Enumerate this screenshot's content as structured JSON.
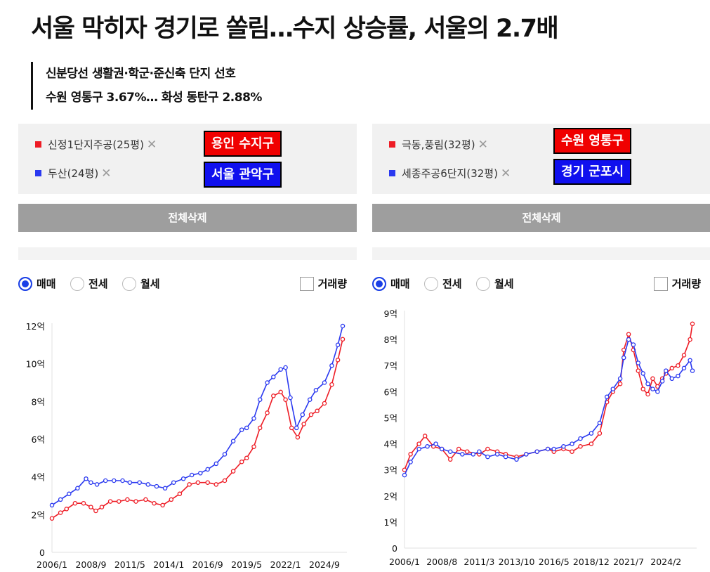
{
  "headline": "서울 막히자 경기로 쏠림…수지 상승률, 서울의 2.7배",
  "subheadings": [
    "신분당선 생활권·학군·준신축 단지 선호",
    "수원 영통구 3.67%… 화성 동탄구 2.88%"
  ],
  "colors": {
    "red": "#ee1c25",
    "blue": "#2a39f0",
    "region_label_red": "#f00000",
    "region_label_blue": "#1010ee",
    "clear_button": "#9e9e9e"
  },
  "icons": {
    "remove": "close-icon",
    "legend_marker": "square-icon",
    "trade_type": "radio-icon",
    "volume": "checkbox-icon"
  },
  "panels": [
    {
      "items": [
        {
          "label": "신정1단지주공(25평)",
          "color": "#ee1c25"
        },
        {
          "label": "두산(24평)",
          "color": "#2a39f0"
        }
      ],
      "region_labels": [
        "용인 수지구",
        "서울 관악구"
      ],
      "remove_mark": "✕",
      "clear_button": "전체삭제",
      "trade_types": [
        "매매",
        "전세",
        "월세"
      ],
      "selected_trade_type": "매매",
      "volume_label": "거래량",
      "volume_checked": false
    },
    {
      "items": [
        {
          "label": "극동,풍림(32평)",
          "color": "#ee1c25"
        },
        {
          "label": "세종주공6단지(32평)",
          "color": "#2a39f0"
        }
      ],
      "region_labels": [
        "수원 영통구",
        "경기 군포시"
      ],
      "remove_mark": "✕",
      "clear_button": "전체삭제",
      "trade_types": [
        "매매",
        "전세",
        "월세"
      ],
      "selected_trade_type": "매매",
      "volume_label": "거래량",
      "volume_checked": false
    }
  ],
  "chart_data": [
    {
      "type": "line",
      "x_tick_labels": [
        "2006/1",
        "2008/9",
        "2011/5",
        "2014/1",
        "2016/9",
        "2019/5",
        "2022/1",
        "2024/9"
      ],
      "x_range": [
        "2006/1",
        "2025/12"
      ],
      "y_tick_labels": [
        "0",
        "2억",
        "4억",
        "6억",
        "8억",
        "10억",
        "12억"
      ],
      "ylim": [
        0,
        12
      ],
      "y_unit": "억",
      "grid": false,
      "series": [
        {
          "name": "신정1단지주공(25평)",
          "color": "#ee1c25",
          "points": [
            [
              "2006/1",
              1.8
            ],
            [
              "2006/8",
              2.1
            ],
            [
              "2007/1",
              2.3
            ],
            [
              "2007/8",
              2.6
            ],
            [
              "2008/3",
              2.6
            ],
            [
              "2008/9",
              2.4
            ],
            [
              "2009/1",
              2.2
            ],
            [
              "2009/6",
              2.4
            ],
            [
              "2010/1",
              2.7
            ],
            [
              "2010/8",
              2.7
            ],
            [
              "2011/3",
              2.8
            ],
            [
              "2011/10",
              2.7
            ],
            [
              "2012/6",
              2.8
            ],
            [
              "2013/1",
              2.6
            ],
            [
              "2013/8",
              2.5
            ],
            [
              "2014/3",
              2.8
            ],
            [
              "2014/10",
              3.1
            ],
            [
              "2015/6",
              3.6
            ],
            [
              "2016/1",
              3.7
            ],
            [
              "2016/9",
              3.7
            ],
            [
              "2017/4",
              3.6
            ],
            [
              "2017/11",
              3.8
            ],
            [
              "2018/6",
              4.3
            ],
            [
              "2019/1",
              4.8
            ],
            [
              "2019/5",
              5.0
            ],
            [
              "2019/11",
              5.6
            ],
            [
              "2020/4",
              6.6
            ],
            [
              "2020/10",
              7.4
            ],
            [
              "2021/3",
              8.3
            ],
            [
              "2021/9",
              8.5
            ],
            [
              "2022/1",
              8.1
            ],
            [
              "2022/6",
              6.6
            ],
            [
              "2022/11",
              6.1
            ],
            [
              "2023/4",
              6.8
            ],
            [
              "2023/10",
              7.3
            ],
            [
              "2024/3",
              7.5
            ],
            [
              "2024/9",
              7.9
            ],
            [
              "2025/3",
              8.9
            ],
            [
              "2025/8",
              10.2
            ],
            [
              "2025/12",
              11.3
            ]
          ]
        },
        {
          "name": "두산(24평)",
          "color": "#2a39f0",
          "points": [
            [
              "2006/1",
              2.5
            ],
            [
              "2006/8",
              2.8
            ],
            [
              "2007/3",
              3.1
            ],
            [
              "2007/10",
              3.4
            ],
            [
              "2008/5",
              3.9
            ],
            [
              "2008/9",
              3.7
            ],
            [
              "2009/2",
              3.6
            ],
            [
              "2009/9",
              3.8
            ],
            [
              "2010/4",
              3.8
            ],
            [
              "2010/11",
              3.8
            ],
            [
              "2011/5",
              3.7
            ],
            [
              "2012/1",
              3.7
            ],
            [
              "2012/8",
              3.6
            ],
            [
              "2013/3",
              3.5
            ],
            [
              "2013/10",
              3.4
            ],
            [
              "2014/5",
              3.7
            ],
            [
              "2015/1",
              3.9
            ],
            [
              "2015/8",
              4.1
            ],
            [
              "2016/3",
              4.2
            ],
            [
              "2016/9",
              4.4
            ],
            [
              "2017/4",
              4.7
            ],
            [
              "2017/11",
              5.2
            ],
            [
              "2018/6",
              5.9
            ],
            [
              "2019/1",
              6.5
            ],
            [
              "2019/5",
              6.6
            ],
            [
              "2019/11",
              7.1
            ],
            [
              "2020/4",
              8.1
            ],
            [
              "2020/10",
              9.0
            ],
            [
              "2021/3",
              9.3
            ],
            [
              "2021/9",
              9.7
            ],
            [
              "2022/1",
              9.8
            ],
            [
              "2022/5",
              8.2
            ],
            [
              "2022/10",
              6.6
            ],
            [
              "2023/3",
              7.3
            ],
            [
              "2023/9",
              8.1
            ],
            [
              "2024/2",
              8.6
            ],
            [
              "2024/9",
              9.0
            ],
            [
              "2025/3",
              9.9
            ],
            [
              "2025/8",
              11.0
            ],
            [
              "2025/12",
              12.0
            ]
          ]
        }
      ]
    },
    {
      "type": "line",
      "x_tick_labels": [
        "2006/1",
        "2008/8",
        "2011/3",
        "2013/10",
        "2016/5",
        "2018/12",
        "2021/7",
        "2024/2"
      ],
      "x_range": [
        "2006/1",
        "2025/12"
      ],
      "y_tick_labels": [
        "0",
        "1억",
        "2억",
        "3억",
        "4억",
        "5억",
        "6억",
        "7억",
        "8억",
        "9억"
      ],
      "ylim": [
        0,
        9
      ],
      "y_unit": "억",
      "grid": false,
      "series": [
        {
          "name": "극동,풍림(32평)",
          "color": "#ee1c25",
          "points": [
            [
              "2006/1",
              3.0
            ],
            [
              "2006/6",
              3.6
            ],
            [
              "2007/1",
              4.0
            ],
            [
              "2007/6",
              4.3
            ],
            [
              "2008/1",
              3.9
            ],
            [
              "2008/8",
              3.8
            ],
            [
              "2009/3",
              3.4
            ],
            [
              "2009/10",
              3.8
            ],
            [
              "2010/5",
              3.7
            ],
            [
              "2011/3",
              3.6
            ],
            [
              "2011/10",
              3.8
            ],
            [
              "2012/6",
              3.7
            ],
            [
              "2013/1",
              3.6
            ],
            [
              "2013/10",
              3.5
            ],
            [
              "2014/6",
              3.6
            ],
            [
              "2015/3",
              3.7
            ],
            [
              "2015/12",
              3.8
            ],
            [
              "2016/5",
              3.7
            ],
            [
              "2017/1",
              3.8
            ],
            [
              "2017/8",
              3.7
            ],
            [
              "2018/3",
              3.9
            ],
            [
              "2018/12",
              4.0
            ],
            [
              "2019/7",
              4.4
            ],
            [
              "2020/1",
              5.6
            ],
            [
              "2020/6",
              6.0
            ],
            [
              "2020/12",
              6.3
            ],
            [
              "2021/3",
              7.6
            ],
            [
              "2021/7",
              8.2
            ],
            [
              "2021/11",
              7.6
            ],
            [
              "2022/3",
              6.8
            ],
            [
              "2022/7",
              6.1
            ],
            [
              "2022/11",
              5.9
            ],
            [
              "2023/3",
              6.5
            ],
            [
              "2023/7",
              6.2
            ],
            [
              "2023/11",
              6.5
            ],
            [
              "2024/2",
              6.7
            ],
            [
              "2024/7",
              6.9
            ],
            [
              "2024/12",
              7.0
            ],
            [
              "2025/5",
              7.4
            ],
            [
              "2025/10",
              8.0
            ],
            [
              "2025/12",
              8.6
            ]
          ]
        },
        {
          "name": "세종주공6단지(32평)",
          "color": "#2a39f0",
          "points": [
            [
              "2006/1",
              2.8
            ],
            [
              "2006/6",
              3.3
            ],
            [
              "2007/1",
              3.8
            ],
            [
              "2007/8",
              3.9
            ],
            [
              "2008/3",
              4.0
            ],
            [
              "2008/8",
              3.8
            ],
            [
              "2009/3",
              3.7
            ],
            [
              "2010/1",
              3.6
            ],
            [
              "2010/10",
              3.6
            ],
            [
              "2011/3",
              3.7
            ],
            [
              "2011/10",
              3.5
            ],
            [
              "2012/6",
              3.6
            ],
            [
              "2013/1",
              3.5
            ],
            [
              "2013/10",
              3.4
            ],
            [
              "2014/6",
              3.6
            ],
            [
              "2015/3",
              3.7
            ],
            [
              "2015/12",
              3.8
            ],
            [
              "2016/5",
              3.8
            ],
            [
              "2017/1",
              3.9
            ],
            [
              "2017/8",
              4.0
            ],
            [
              "2018/3",
              4.2
            ],
            [
              "2018/12",
              4.4
            ],
            [
              "2019/7",
              4.8
            ],
            [
              "2020/1",
              5.8
            ],
            [
              "2020/6",
              6.1
            ],
            [
              "2020/12",
              6.5
            ],
            [
              "2021/3",
              7.3
            ],
            [
              "2021/7",
              8.0
            ],
            [
              "2021/11",
              7.8
            ],
            [
              "2022/3",
              7.1
            ],
            [
              "2022/7",
              6.7
            ],
            [
              "2022/11",
              6.3
            ],
            [
              "2023/3",
              6.1
            ],
            [
              "2023/7",
              6.0
            ],
            [
              "2023/11",
              6.4
            ],
            [
              "2024/2",
              6.8
            ],
            [
              "2024/7",
              6.5
            ],
            [
              "2024/12",
              6.6
            ],
            [
              "2025/5",
              6.9
            ],
            [
              "2025/10",
              7.2
            ],
            [
              "2025/12",
              6.8
            ]
          ]
        }
      ]
    }
  ]
}
